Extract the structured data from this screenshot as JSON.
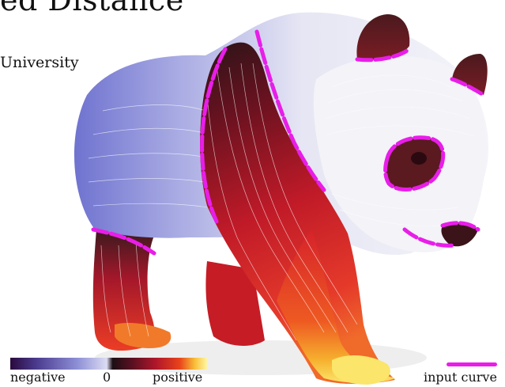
{
  "header": {
    "title_fragment": "ed Distance",
    "affiliation_fragment": "University"
  },
  "legend": {
    "negative_label": "negative",
    "zero_label": "0",
    "positive_label": "positive",
    "curve_label": "input curve"
  },
  "colors": {
    "negative_dark": "#2a0a3d",
    "negative_mid": "#8d8fd6",
    "zero_white": "#f2f2fa",
    "positive_dark": "#1b0f14",
    "positive_red": "#b0162a",
    "positive_yellow": "#fff6a8",
    "input_curve": "#e81ee8"
  }
}
